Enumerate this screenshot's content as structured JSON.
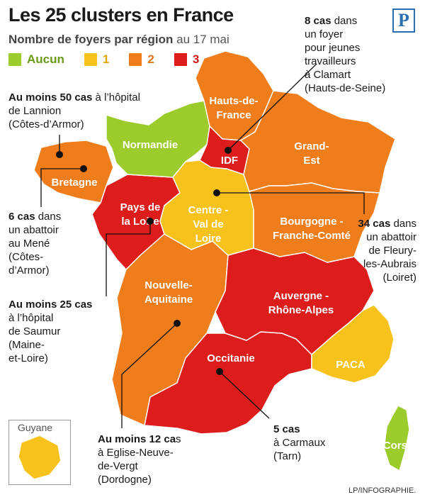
{
  "header": {
    "title": "Les 25 clusters en France",
    "subtitle_bold": "Nombre de foyers par région",
    "subtitle_rest": " au 17 mai",
    "logo": "P"
  },
  "legend": [
    {
      "label": "Aucun",
      "color": "#9ccb2c"
    },
    {
      "label": "1",
      "color": "#f7c21b"
    },
    {
      "label": "2",
      "color": "#ef7d1b"
    },
    {
      "label": "3",
      "color": "#dd1c1c"
    }
  ],
  "regions": [
    {
      "name": "Hauts-de-France",
      "line1": "Hauts-de-",
      "line2": "France",
      "clusters": 2,
      "color": "#ef7d1b"
    },
    {
      "name": "Normandie",
      "line1": "Normandie",
      "line2": "",
      "clusters": 0,
      "color": "#9ccb2c"
    },
    {
      "name": "IDF",
      "line1": "IDF",
      "line2": "",
      "clusters": 3,
      "color": "#dd1c1c"
    },
    {
      "name": "Grand-Est",
      "line1": "Grand-",
      "line2": "Est",
      "clusters": 2,
      "color": "#ef7d1b"
    },
    {
      "name": "Bretagne",
      "line1": "Bretagne",
      "line2": "",
      "clusters": 2,
      "color": "#ef7d1b"
    },
    {
      "name": "Pays de la Loire",
      "line1": "Pays de",
      "line2": "la Loire",
      "clusters": 3,
      "color": "#dd1c1c"
    },
    {
      "name": "Centre-Val de Loire",
      "line1": "Centre -",
      "line2": "Val de",
      "line3": "Loire",
      "clusters": 1,
      "color": "#f7c21b"
    },
    {
      "name": "Bourgogne-Franche-Comté",
      "line1": "Bourgogne -",
      "line2": "Franche-Comté",
      "clusters": 2,
      "color": "#ef7d1b"
    },
    {
      "name": "Nouvelle-Aquitaine",
      "line1": "Nouvelle-",
      "line2": "Aquitaine",
      "clusters": 2,
      "color": "#ef7d1b"
    },
    {
      "name": "Auvergne-Rhône-Alpes",
      "line1": "Auvergne -",
      "line2": "Rhône-Alpes",
      "clusters": 3,
      "color": "#dd1c1c"
    },
    {
      "name": "Occitanie",
      "line1": "Occitanie",
      "line2": "",
      "clusters": 3,
      "color": "#dd1c1c"
    },
    {
      "name": "PACA",
      "line1": "PACA",
      "line2": "",
      "clusters": 1,
      "color": "#f7c21b"
    },
    {
      "name": "Corse",
      "line1": "Corse",
      "line2": "",
      "clusters": 0,
      "color": "#9ccb2c"
    },
    {
      "name": "Guyane",
      "line1": "Guyane",
      "line2": "",
      "clusters": 1,
      "color": "#f7c21b"
    }
  ],
  "annotations": [
    {
      "id": "clamart",
      "bold": "8 cas",
      "rest": " dans",
      "lines": [
        "un foyer",
        "pour jeunes",
        "travailleurs",
        "à Clamart",
        "(Hauts-de-Seine)"
      ]
    },
    {
      "id": "lannion",
      "bold": "Au moins 50 cas",
      "rest": " à l’hôpital",
      "lines": [
        "de Lannion",
        "(Côtes-d’Armor)"
      ]
    },
    {
      "id": "mene",
      "bold": "6 cas",
      "rest": " dans",
      "lines": [
        "un abattoir",
        "au Mené",
        "(Côtes-",
        "d’Armor)"
      ]
    },
    {
      "id": "fleury",
      "bold": "34 cas",
      "rest": " dans",
      "lines": [
        "un abattoir",
        "de Fleury-",
        "les-Aubrais",
        "(Loiret)"
      ]
    },
    {
      "id": "saumur",
      "bold": "Au moins 25 cas",
      "rest": "",
      "lines": [
        "à l’hôpital",
        "de Saumur",
        "(Maine-",
        "et-Loire)"
      ]
    },
    {
      "id": "eglise",
      "bold": "Au moins 12 ca",
      "rest": "s",
      "lines": [
        "à Eglise-Neuve-",
        "de-Vergt",
        "(Dordogne)"
      ]
    },
    {
      "id": "carmaux",
      "bold": "5 cas",
      "rest": "",
      "lines": [
        "à Carmaux",
        "(Tarn)"
      ]
    }
  ],
  "credit": "LP/INFOGRAPHIE."
}
